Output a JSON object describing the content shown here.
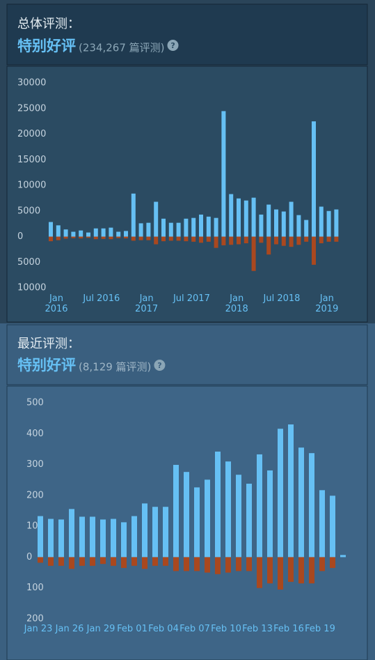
{
  "overall": {
    "heading": "总体评测：",
    "rating": "特别好评",
    "count": "(234,267 篇评测)",
    "help_icon": "?"
  },
  "recent": {
    "heading": "最近评测：",
    "rating": "特别好评",
    "count": "(8,129 篇评测)",
    "help_icon": "?"
  },
  "chart_data": [
    {
      "type": "bar",
      "categories": [
        "Jan\n2016",
        null,
        null,
        null,
        null,
        null,
        "Jul 2016",
        null,
        null,
        null,
        null,
        null,
        "Jan\n2017",
        null,
        null,
        null,
        null,
        null,
        "Jul 2017",
        null,
        null,
        null,
        null,
        null,
        "Jan\n2018",
        null,
        null,
        null,
        null,
        null,
        "Jul 2018",
        null,
        null,
        null,
        null,
        null,
        "Jan\n2019",
        null,
        null
      ],
      "series": [
        {
          "color": "#66c0f4",
          "values": [
            2850,
            2200,
            1400,
            950,
            1200,
            800,
            1600,
            1600,
            1750,
            950,
            1100,
            8400,
            2600,
            2700,
            6800,
            3500,
            2700,
            2700,
            3500,
            3650,
            4300,
            3900,
            3650,
            24500,
            8300,
            7450,
            7050,
            7600,
            4300,
            6250,
            5300,
            4900,
            6800,
            4200,
            3250,
            22500,
            5850,
            5000,
            5300
          ]
        },
        {
          "color": "#a9481f",
          "values": [
            -900,
            -700,
            -400,
            -300,
            -350,
            -250,
            -500,
            -450,
            -500,
            -300,
            -350,
            -800,
            -700,
            -700,
            -1500,
            -900,
            -800,
            -800,
            -900,
            -1000,
            -1200,
            -1000,
            -2200,
            -1700,
            -1600,
            -1500,
            -1300,
            -6700,
            -1200,
            -3500,
            -1500,
            -1800,
            -2000,
            -1600,
            -1000,
            -5500,
            -1300,
            -1000,
            -1000
          ]
        }
      ],
      "ylim": [
        -10000,
        30000
      ],
      "yticks": [
        30000,
        25000,
        20000,
        15000,
        10000,
        5000,
        0,
        {
          "value": -5000,
          "label": "5000"
        },
        {
          "value": -10000,
          "label": "10000"
        }
      ]
    },
    {
      "type": "bar",
      "categories": [
        "Jan 23",
        null,
        null,
        "Jan 26",
        null,
        null,
        "Jan 29",
        null,
        null,
        "Feb 01",
        null,
        null,
        "Feb 04",
        null,
        null,
        "Feb 07",
        null,
        null,
        "Feb 10",
        null,
        null,
        "Feb 13",
        null,
        null,
        "Feb 16",
        null,
        null,
        "Feb 19",
        null,
        null
      ],
      "series": [
        {
          "color": "#66c0f4",
          "values": [
            133,
            124,
            122,
            156,
            131,
            131,
            122,
            124,
            113,
            133,
            174,
            163,
            163,
            299,
            276,
            226,
            251,
            342,
            310,
            267,
            238,
            333,
            281,
            416,
            430,
            355,
            337,
            217,
            199,
            7
          ]
        },
        {
          "color": "#a9481f",
          "values": [
            -18,
            -28,
            -28,
            -38,
            -28,
            -28,
            -22,
            -28,
            -35,
            -28,
            -38,
            -28,
            -28,
            -45,
            -45,
            -45,
            -50,
            -55,
            -50,
            -45,
            -45,
            -100,
            -85,
            -105,
            -80,
            -85,
            -85,
            -45,
            -35,
            0
          ]
        }
      ],
      "ylim": [
        -200,
        500
      ],
      "yticks": [
        500,
        400,
        300,
        200,
        100,
        0,
        {
          "value": -100,
          "label": "100"
        },
        {
          "value": -200,
          "label": "200"
        }
      ]
    }
  ]
}
